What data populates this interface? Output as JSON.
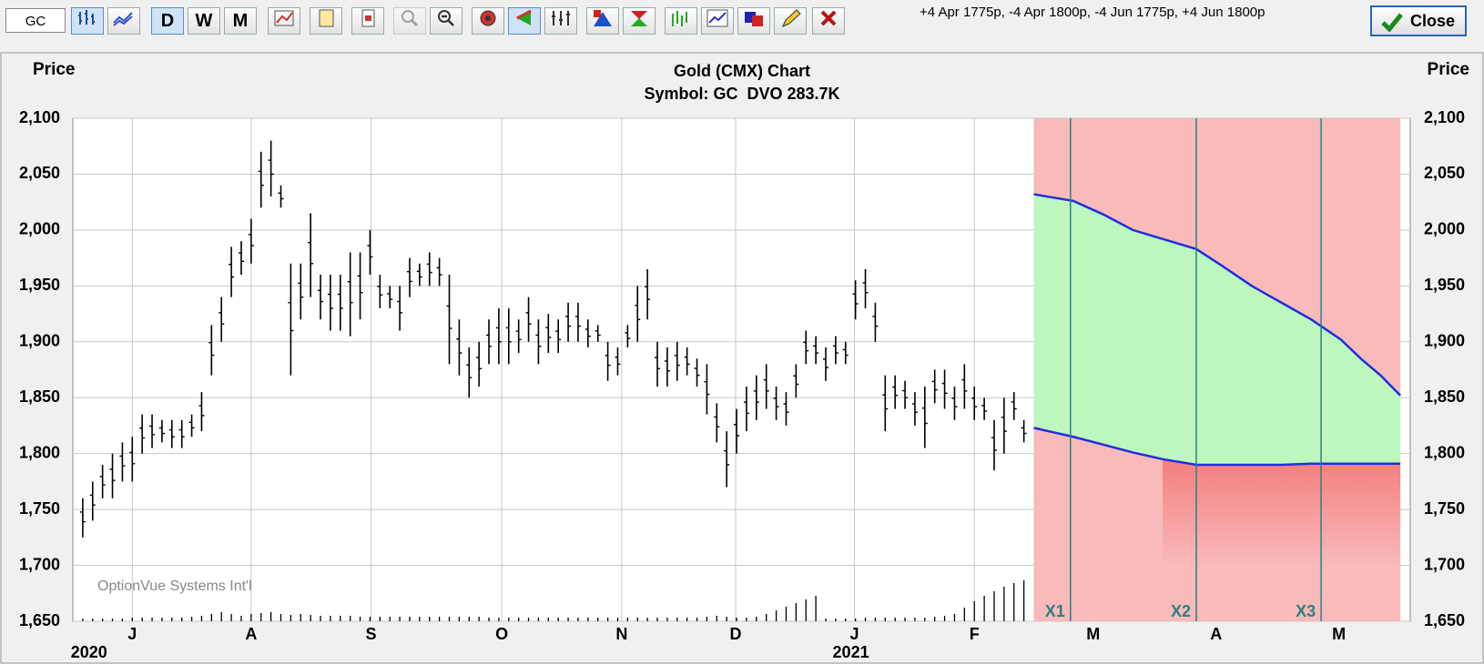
{
  "toolbar": {
    "symbol": "GC",
    "periods": [
      "D",
      "W",
      "M"
    ],
    "position": "+4 Apr 1775p, -4 Apr 1800p, -4 Jun 1775p, +4 Jun 1800p",
    "close": "Close"
  },
  "chart_data": {
    "type": "ohlc",
    "title": "Gold (CMX) Chart",
    "subtitle": "Symbol: GC  DVO 283.7K",
    "ylabel": "Price",
    "y2label": "Price",
    "watermark": "OptionVue Systems Int'l",
    "ylim": [
      1650,
      2100
    ],
    "yticks": [
      {
        "value": 1650,
        "label": "1,650"
      },
      {
        "value": 1700,
        "label": "1,700"
      },
      {
        "value": 1750,
        "label": "1,750"
      },
      {
        "value": 1800,
        "label": "1,800"
      },
      {
        "value": 1850,
        "label": "1,850"
      },
      {
        "value": 1900,
        "label": "1,900"
      },
      {
        "value": 1950,
        "label": "1,950"
      },
      {
        "value": 2000,
        "label": "2,000"
      },
      {
        "value": 2050,
        "label": "2,050"
      },
      {
        "value": 2100,
        "label": "2,100"
      }
    ],
    "xlim": [
      -1,
      134
    ],
    "xticks": [
      {
        "value": 5,
        "label": "J"
      },
      {
        "value": 17,
        "label": "A"
      },
      {
        "value": 29.1,
        "label": "S"
      },
      {
        "value": 42.3,
        "label": "O"
      },
      {
        "value": 54.4,
        "label": "N"
      },
      {
        "value": 65.9,
        "label": "D"
      },
      {
        "value": 77.9,
        "label": "J"
      },
      {
        "value": 90,
        "label": "F"
      },
      {
        "value": 102,
        "label": "M"
      },
      {
        "value": 114.4,
        "label": "A"
      },
      {
        "value": 126.8,
        "label": "M"
      }
    ],
    "years": [
      {
        "value": 1,
        "label": "2020"
      },
      {
        "value": 77.9,
        "label": "2021"
      }
    ],
    "grid": true,
    "color": "#000000",
    "high": [
      1760,
      1775,
      1790,
      1800,
      1810,
      1815,
      1835,
      1835,
      1830,
      1830,
      1830,
      1835,
      1855,
      1915,
      1940,
      1985,
      1990,
      2010,
      2070,
      2080,
      2040,
      1970,
      1970,
      2015,
      1960,
      1960,
      1960,
      1980,
      1980,
      2000,
      1960,
      1950,
      1950,
      1975,
      1970,
      1980,
      1975,
      1960,
      1920,
      1895,
      1900,
      1920,
      1930,
      1930,
      1920,
      1940,
      1920,
      1925,
      1920,
      1935,
      1935,
      1920,
      1915,
      1900,
      1895,
      1915,
      1950,
      1965,
      1900,
      1895,
      1900,
      1895,
      1885,
      1880,
      1845,
      1820,
      1840,
      1860,
      1870,
      1880,
      1860,
      1855,
      1880,
      1910,
      1905,
      1895,
      1905,
      1900,
      1955,
      1965,
      1935,
      1870,
      1870,
      1865,
      1855,
      1860,
      1875,
      1875,
      1860,
      1880,
      1860,
      1850,
      1830,
      1850,
      1855,
      1830
    ],
    "low": [
      1725,
      1740,
      1760,
      1760,
      1775,
      1775,
      1800,
      1805,
      1810,
      1805,
      1805,
      1815,
      1820,
      1870,
      1900,
      1940,
      1960,
      1970,
      2020,
      2030,
      2020,
      1870,
      1920,
      1940,
      1920,
      1910,
      1910,
      1905,
      1920,
      1960,
      1930,
      1930,
      1910,
      1940,
      1950,
      1950,
      1950,
      1880,
      1870,
      1850,
      1860,
      1880,
      1880,
      1880,
      1890,
      1900,
      1880,
      1890,
      1890,
      1900,
      1900,
      1895,
      1900,
      1865,
      1870,
      1895,
      1900,
      1920,
      1860,
      1860,
      1865,
      1870,
      1860,
      1835,
      1810,
      1770,
      1800,
      1820,
      1830,
      1840,
      1830,
      1825,
      1850,
      1880,
      1880,
      1865,
      1880,
      1880,
      1920,
      1930,
      1900,
      1820,
      1840,
      1840,
      1825,
      1805,
      1845,
      1840,
      1830,
      1840,
      1830,
      1830,
      1785,
      1800,
      1830,
      1810
    ],
    "volume": [
      3,
      3,
      3,
      3,
      3,
      4,
      4,
      4,
      4,
      4,
      4,
      5,
      6,
      8,
      10,
      8,
      6,
      8,
      9,
      10,
      8,
      7,
      8,
      7,
      6,
      6,
      6,
      6,
      5,
      5,
      5,
      5,
      5,
      5,
      5,
      5,
      5,
      5,
      5,
      5,
      5,
      4,
      4,
      4,
      4,
      4,
      4,
      4,
      4,
      4,
      4,
      4,
      4,
      4,
      4,
      4,
      4,
      4,
      4,
      4,
      4,
      4,
      4,
      5,
      6,
      5,
      4,
      4,
      5,
      8,
      12,
      16,
      20,
      24,
      28,
      3,
      3,
      3,
      3,
      4,
      4,
      4,
      4,
      4,
      4,
      4,
      5,
      6,
      8,
      15,
      22,
      28,
      33,
      38,
      42,
      45
    ],
    "volume_color": "#000000",
    "projection": {
      "x": [
        96,
        100,
        103,
        106,
        109,
        112.4,
        115,
        118,
        121,
        124,
        127,
        129,
        131,
        133
      ],
      "upper": [
        2032,
        2026,
        2014,
        2000,
        1992,
        1983,
        1968,
        1950,
        1935,
        1920,
        1902,
        1885,
        1870,
        1852
      ],
      "lower": [
        1823,
        1815,
        1808,
        1801,
        1795,
        1790,
        1790,
        1790,
        1790,
        1791,
        1791,
        1791,
        1791,
        1791
      ],
      "line_color": "#1f2ee0",
      "profit_color": "#bdf7bd",
      "loss_color": "#f9baba"
    },
    "markers": [
      {
        "label": "X1",
        "value": 99.7
      },
      {
        "label": "X2",
        "value": 112.4
      },
      {
        "label": "X3",
        "value": 125
      }
    ],
    "marker_color": "#2b7f86"
  }
}
